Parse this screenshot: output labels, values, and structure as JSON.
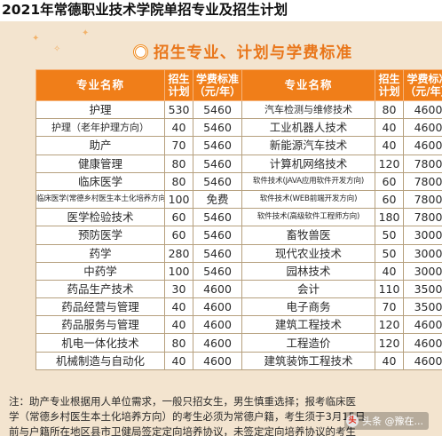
{
  "page_title": "2021年常德职业技术学院单招专业及招生计划",
  "banner_title": "招生专业、计划与学费标准",
  "headers": {
    "major": "专业名称",
    "plan_top": "招生",
    "plan_bottom": "计划",
    "fee_top": "学费标准",
    "fee_bottom": "（元/年）"
  },
  "rows": [
    {
      "l_name": "护理",
      "l_plan": "530",
      "l_fee": "5460",
      "r_name": "汽车检测与维修技术",
      "r_plan": "80",
      "r_fee": "4600"
    },
    {
      "l_name": "护理（老年护理方向）",
      "l_plan": "40",
      "l_fee": "5460",
      "r_name": "工业机器人技术",
      "r_plan": "40",
      "r_fee": "4600"
    },
    {
      "l_name": "助产",
      "l_plan": "70",
      "l_fee": "5460",
      "r_name": "新能源汽车技术",
      "r_plan": "40",
      "r_fee": "4600"
    },
    {
      "l_name": "健康管理",
      "l_plan": "80",
      "l_fee": "5460",
      "r_name": "计算机网络技术",
      "r_plan": "120",
      "r_fee": "7800"
    },
    {
      "l_name": "临床医学",
      "l_plan": "80",
      "l_fee": "5460",
      "r_name": "软件技术(JAVA应用软件开发方向)",
      "r_plan": "60",
      "r_fee": "7800"
    },
    {
      "l_name": "临床医学(常德乡村医生本土化培养方向)",
      "l_plan": "100",
      "l_fee": "免费",
      "r_name": "软件技术(WEB前端开发方向)",
      "r_plan": "60",
      "r_fee": "7800"
    },
    {
      "l_name": "医学检验技术",
      "l_plan": "60",
      "l_fee": "5460",
      "r_name": "软件技术(高级软件工程师方向)",
      "r_plan": "180",
      "r_fee": "7800"
    },
    {
      "l_name": "预防医学",
      "l_plan": "60",
      "l_fee": "5460",
      "r_name": "畜牧兽医",
      "r_plan": "50",
      "r_fee": "3000"
    },
    {
      "l_name": "药学",
      "l_plan": "280",
      "l_fee": "5460",
      "r_name": "现代农业技术",
      "r_plan": "50",
      "r_fee": "3000"
    },
    {
      "l_name": "中药学",
      "l_plan": "100",
      "l_fee": "5460",
      "r_name": "园林技术",
      "r_plan": "40",
      "r_fee": "3000"
    },
    {
      "l_name": "药品生产技术",
      "l_plan": "30",
      "l_fee": "4600",
      "r_name": "会计",
      "r_plan": "110",
      "r_fee": "3500"
    },
    {
      "l_name": "药品经营与管理",
      "l_plan": "40",
      "l_fee": "4600",
      "r_name": "电子商务",
      "r_plan": "70",
      "r_fee": "3500"
    },
    {
      "l_name": "药品服务与管理",
      "l_plan": "40",
      "l_fee": "4600",
      "r_name": "建筑工程技术",
      "r_plan": "120",
      "r_fee": "4600"
    },
    {
      "l_name": "机电一体化技术",
      "l_plan": "80",
      "l_fee": "4600",
      "r_name": "工程造价",
      "r_plan": "120",
      "r_fee": "4600"
    },
    {
      "l_name": "机械制造与自动化",
      "l_plan": "40",
      "l_fee": "4600",
      "r_name": "建筑装饰工程技术",
      "r_plan": "40",
      "r_fee": "4600"
    }
  ],
  "note": {
    "line1": "注：助产专业根据用人单位需求，一般只招女生，男生慎重选择；报考临床医",
    "line2": "学（常德乡村医生本土化培养方向）的考生必须为常德户籍，考生须于3月15日",
    "line3": "前与户籍所在地区县市卫健局签定定向培养协议，未签定定向培养协议的考生"
  },
  "watermark": {
    "logo": "头",
    "text": "头条 @豫在..."
  }
}
